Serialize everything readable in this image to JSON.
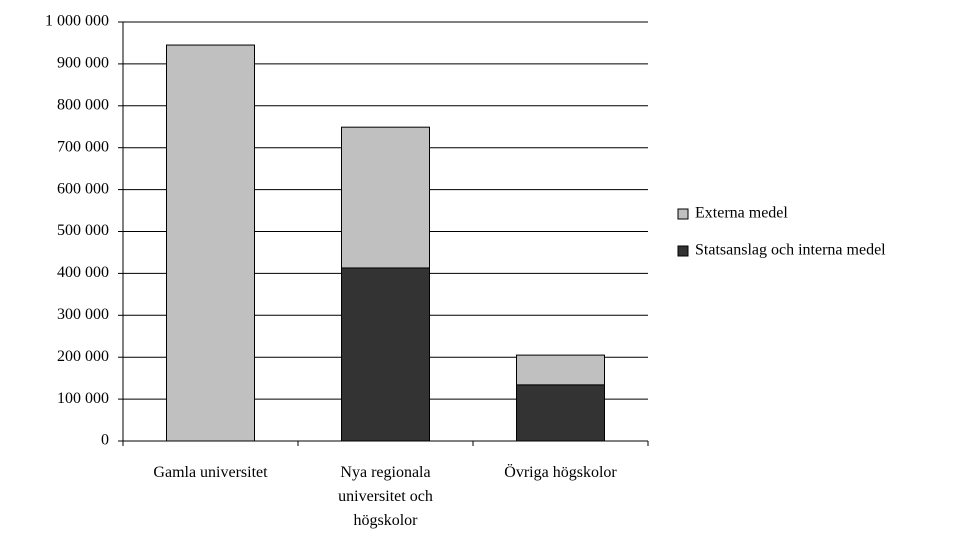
{
  "chart_data": {
    "type": "stacked_bar",
    "categories": [
      "Gamla universitet",
      "Nya regionala universitet och högskolor",
      "Övriga högskolor"
    ],
    "series": [
      {
        "name": "Statsanslag och interna medel",
        "color": "#333333",
        "values": [
          0,
          413000,
          134000
        ]
      },
      {
        "name": "Externa medel",
        "color": "#c0c0c0",
        "values": [
          945000,
          336000,
          71000
        ]
      }
    ],
    "ylim": [
      0,
      1000000
    ],
    "yticks": [
      0,
      {
        "value": 100000,
        "label": "100 000"
      },
      {
        "value": 200000,
        "label": "200 000"
      },
      {
        "value": 300000,
        "label": "300 000"
      },
      {
        "value": 400000,
        "label": "400 000"
      },
      {
        "value": 500000,
        "label": "500 000"
      },
      {
        "value": 600000,
        "label": "600 000"
      },
      {
        "value": 700000,
        "label": "700 000"
      },
      {
        "value": 800000,
        "label": "800 000"
      },
      {
        "value": 900000,
        "label": "900 000"
      },
      {
        "value": 1000000,
        "label": "1 000 000"
      }
    ],
    "grid": true,
    "legend": "right"
  }
}
